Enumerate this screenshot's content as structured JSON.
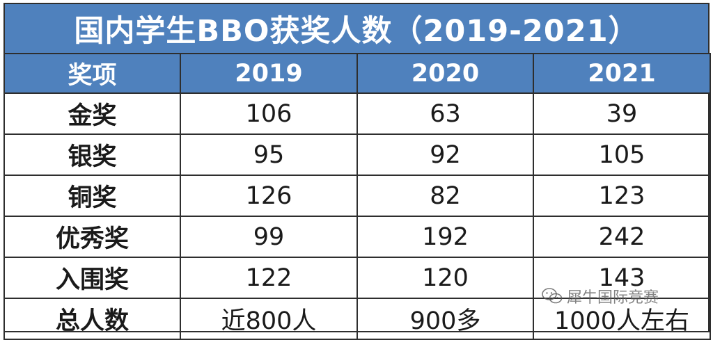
{
  "title": "国内学生BBO获奖人数（2019-2021）",
  "table": {
    "headers": [
      "奖项",
      "2019",
      "2020",
      "2021"
    ],
    "rows": [
      {
        "label": "金奖",
        "values": [
          "106",
          "63",
          "39"
        ]
      },
      {
        "label": "银奖",
        "values": [
          "95",
          "92",
          "105"
        ]
      },
      {
        "label": "铜奖",
        "values": [
          "126",
          "82",
          "123"
        ]
      },
      {
        "label": "优秀奖",
        "values": [
          "99",
          "192",
          "242"
        ]
      },
      {
        "label": "入围奖",
        "values": [
          "122",
          "120",
          "143"
        ]
      },
      {
        "label": "总人数",
        "values": [
          "近800人",
          "900多",
          "1000人左右"
        ]
      }
    ]
  },
  "watermark": {
    "text": "犀牛国际竞赛",
    "icon": "wechat-icon"
  },
  "colors": {
    "header_bg": "#4f81bd",
    "header_text": "#ffffff",
    "border": "#2e2e2e"
  }
}
